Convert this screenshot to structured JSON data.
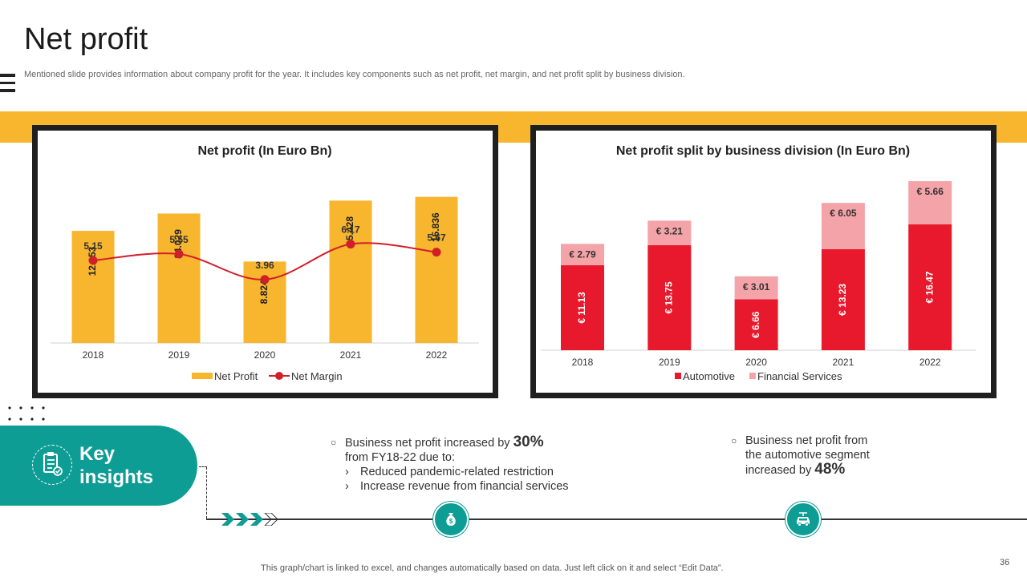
{
  "header": {
    "title": "Net profit",
    "subtitle": "Mentioned slide provides information about company profit for the year.  It includes key components such as net profit, net margin, and net profit split by  business division."
  },
  "colors": {
    "accent_yellow": "#f8b52e",
    "teal": "#0e9d94",
    "automotive_red": "#e8192c",
    "financial_pink": "#f4a3a8",
    "margin_red": "#d11f2a"
  },
  "chart_data": [
    {
      "type": "bar",
      "title": "Net profit (In Euro Bn)",
      "categories": [
        "2018",
        "2019",
        "2020",
        "2021",
        "2022"
      ],
      "series": [
        {
          "name": "Net Profit",
          "type": "bar",
          "values": [
            12.153,
            14.029,
            8.824,
            15.428,
            15.836
          ],
          "labels": [
            "12.153",
            "14.029",
            "8.824",
            "15.428",
            "15.836"
          ]
        },
        {
          "name": "Net Margin",
          "type": "line",
          "values": [
            5.15,
            5.55,
            3.96,
            6.17,
            5.67
          ],
          "labels": [
            "5.15",
            "5.55",
            "3.96",
            "6.17",
            "5.67"
          ]
        }
      ],
      "legend": [
        "Net Profit",
        "Net Margin"
      ],
      "legend_position": "bottom",
      "ylim": [
        0,
        16.5
      ],
      "margin_ylim": [
        0,
        9.5
      ]
    },
    {
      "type": "bar",
      "stacked": true,
      "title": "Net profit split by business division (In Euro Bn)",
      "categories": [
        "2018",
        "2019",
        "2020",
        "2021",
        "2022"
      ],
      "series": [
        {
          "name": "Automotive",
          "values": [
            11.13,
            13.75,
            6.66,
            13.23,
            16.47
          ],
          "labels": [
            "€ 11.13",
            "€ 13.75",
            "€ 6.66",
            "€ 13.23",
            "€ 16.47"
          ]
        },
        {
          "name": "Financial Services",
          "values": [
            2.79,
            3.21,
            3.01,
            6.05,
            5.66
          ],
          "labels": [
            "€ 2.79",
            "€ 3.21",
            "€ 3.01",
            "€ 6.05",
            "€ 5.66"
          ]
        }
      ],
      "legend": [
        "Automotive",
        "Financial Services"
      ],
      "legend_position": "bottom",
      "ylim": [
        0,
        23.5
      ]
    }
  ],
  "key_insights": {
    "heading_line1": "Key",
    "heading_line2": "insights",
    "insight1": {
      "prefix": "Business net profit increased by ",
      "value": "30%",
      "line2": "from FY18-22 due to:",
      "arrow": "›",
      "reasons": [
        "Reduced pandemic-related restriction",
        "Increase revenue from financial services"
      ]
    },
    "insight2": {
      "line1": "Business net profit from",
      "line2": "the automotive segment",
      "prefix": "increased by ",
      "value": "48%"
    }
  },
  "footer": {
    "note": "This graph/chart is linked to excel,  and changes automatically based on data. Just left click on it and select “Edit Data”.",
    "page_number": "36"
  }
}
